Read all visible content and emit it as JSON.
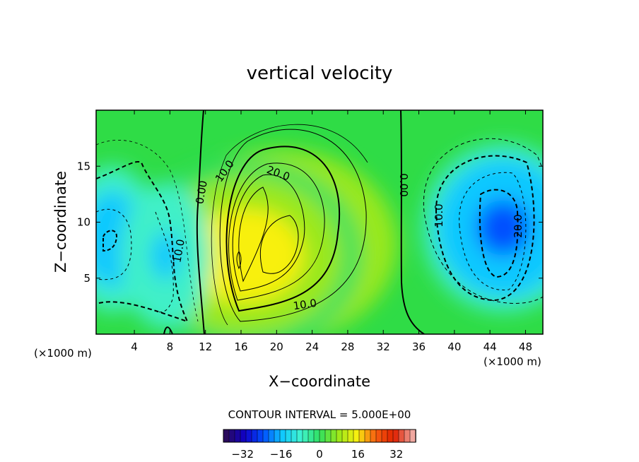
{
  "chart_data": {
    "type": "heatmap",
    "title": "vertical velocity",
    "xlabel": "X−coordinate",
    "ylabel": "Z−coordinate",
    "x_unit_left": "(×1000 m)",
    "x_unit_right": "(×1000 m)",
    "xlim": [
      0,
      50
    ],
    "ylim": [
      0,
      20
    ],
    "x_ticks": [
      4,
      8,
      12,
      16,
      20,
      24,
      28,
      32,
      36,
      40,
      44,
      48
    ],
    "y_ticks": [
      5,
      10,
      15
    ],
    "contour_interval_text": "CONTOUR INTERVAL = 5.000E+00",
    "contour_labels": [
      "0.00",
      "10.0",
      "20.0",
      "0.00",
      "10.0",
      "10.0",
      "20.0",
      "10.0"
    ],
    "colorbar": {
      "min": -40,
      "max": 40,
      "ticks": [
        -32,
        -16,
        0,
        16,
        32
      ],
      "tick_labels": [
        "−32",
        "−16",
        "0",
        "16",
        "32"
      ]
    },
    "features": [
      {
        "kind": "updraft",
        "x": 20.5,
        "z": 8,
        "peak": 32
      },
      {
        "kind": "updraft",
        "x": 16.5,
        "z": 7,
        "peak": 24
      },
      {
        "kind": "downdraft",
        "x": 45.5,
        "z": 9.5,
        "peak": -24
      },
      {
        "kind": "downdraft",
        "x": 1.5,
        "z": 8.5,
        "peak": -16
      },
      {
        "kind": "downdraft",
        "x": 7.5,
        "z": 7,
        "peak": -10
      }
    ],
    "colormap": [
      "#2a0a5c",
      "#1000c8",
      "#0050ff",
      "#10c8ff",
      "#40f4d0",
      "#30e060",
      "#9ae81a",
      "#f8f010",
      "#f86010",
      "#e02000",
      "#f0a8a0"
    ]
  }
}
